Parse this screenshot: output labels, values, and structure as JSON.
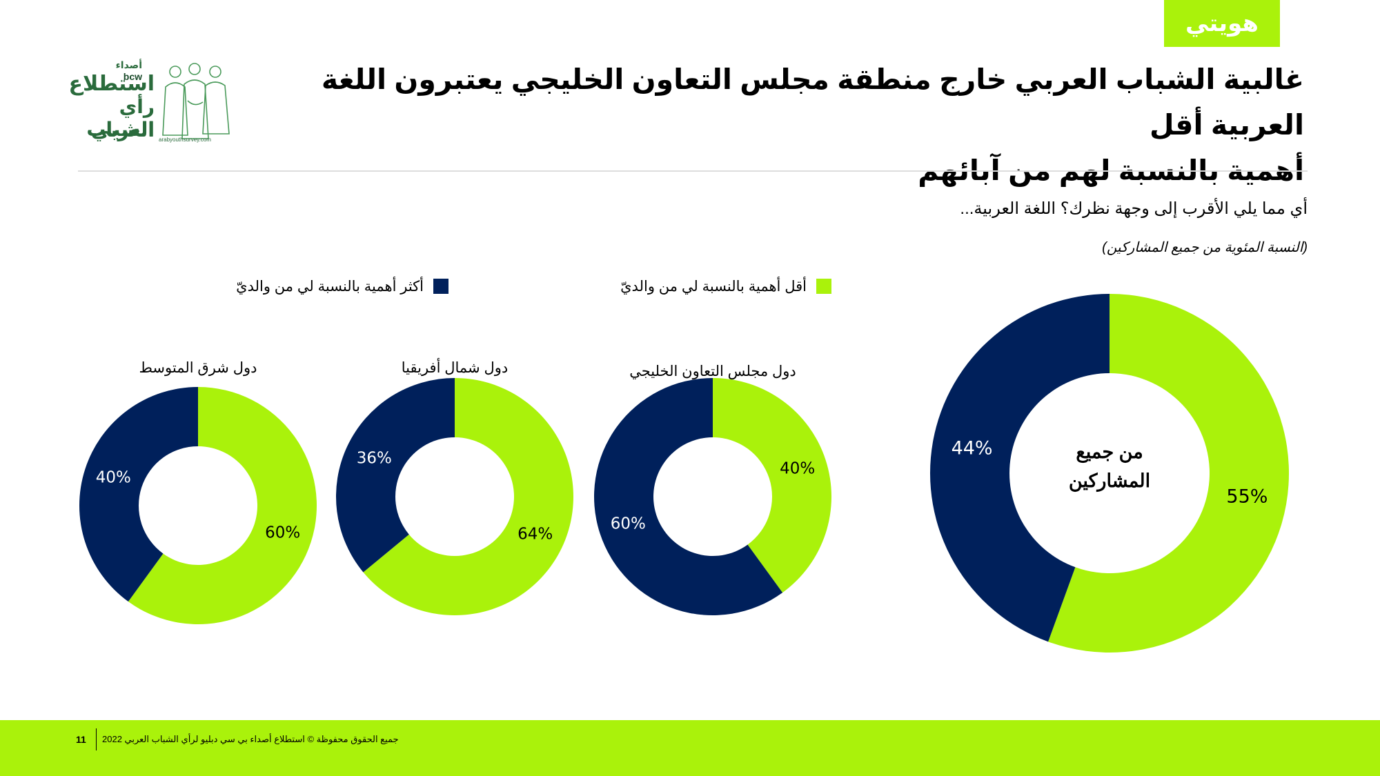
{
  "header": {
    "tag": "هويتي",
    "title_line1": "غالبية الشباب العربي خارج منطقة مجلس التعاون الخليجي يعتبرون اللغة العربية أقل",
    "title_line2": "أهمية بالنسبة لهم من آبائهم",
    "logo": {
      "brand": "bcw",
      "brand_ar": "أصداء",
      "line1": "استطلاع",
      "line2": "رأي الشباب",
      "line3": "العربي",
      "url": "arabyouthsurvey.com"
    }
  },
  "question": "أي مما يلي الأقرب إلى وجهة نظرك؟ اللغة العربية...",
  "subnote": "(النسبة المئوية من جميع المشاركين)",
  "colors": {
    "green": "#aaf20b",
    "navy": "#00205b"
  },
  "legend": {
    "less": "أقل أهمية بالنسبة لي من والديّ",
    "more": "أكثر أهمية بالنسبة لي من والديّ"
  },
  "chart_data": [
    {
      "type": "pie",
      "title": "",
      "center_label": "من جميع المشاركين",
      "series": [
        {
          "name": "أقل أهمية بالنسبة لي من والديّ",
          "value": 55,
          "label": "55%"
        },
        {
          "name": "أكثر أهمية بالنسبة لي من والديّ",
          "value": 44,
          "label": "44%"
        }
      ]
    },
    {
      "type": "pie",
      "title": "دول مجلس التعاون الخليجي",
      "series": [
        {
          "name": "أقل أهمية بالنسبة لي من والديّ",
          "value": 40,
          "label": "40%"
        },
        {
          "name": "أكثر أهمية بالنسبة لي من والديّ",
          "value": 60,
          "label": "60%"
        }
      ]
    },
    {
      "type": "pie",
      "title": "دول شمال أفريقيا",
      "series": [
        {
          "name": "أقل أهمية بالنسبة لي من والديّ",
          "value": 64,
          "label": "64%"
        },
        {
          "name": "أكثر أهمية بالنسبة لي من والديّ",
          "value": 36,
          "label": "36%"
        }
      ]
    },
    {
      "type": "pie",
      "title": "دول شرق المتوسط",
      "series": [
        {
          "name": "أقل أهمية بالنسبة لي من والديّ",
          "value": 60,
          "label": "60%"
        },
        {
          "name": "أكثر أهمية بالنسبة لي من والديّ",
          "value": 40,
          "label": "40%"
        }
      ]
    }
  ],
  "footer": {
    "page": "11",
    "copyright": "جميع الحقوق محفوظة © استطلاع أصداء بي سي دبليو لرأي الشباب العربي 2022"
  }
}
